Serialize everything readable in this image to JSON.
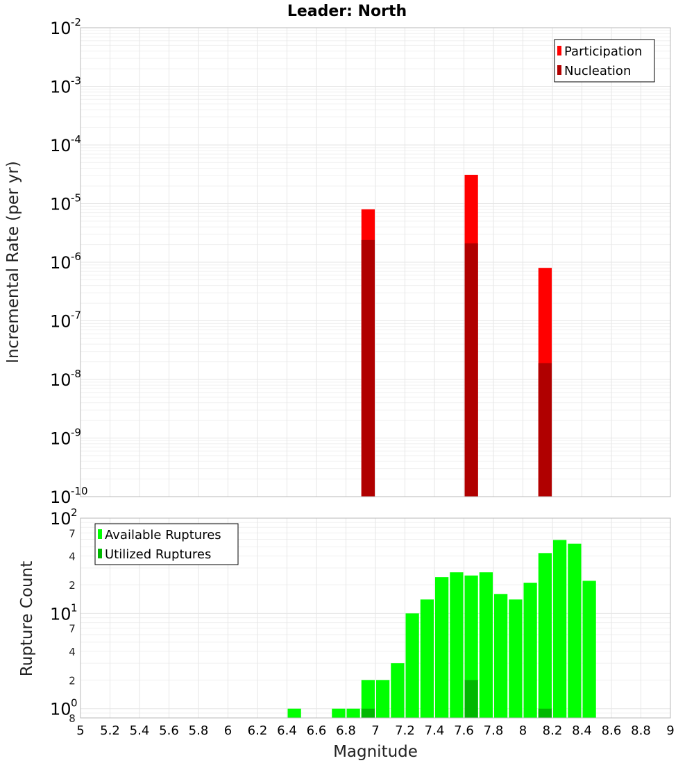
{
  "title": "Leader: North",
  "colors": {
    "participation": "#ff0000",
    "nucleation": "#b00000",
    "available": "#00ff00",
    "utilized": "#00b800"
  },
  "chart_data": [
    {
      "type": "bar",
      "name": "incremental-rate",
      "ylabel": "Incremental Rate (per yr)",
      "yscale": "log",
      "ylim": [
        1e-10,
        0.01
      ],
      "xlim": [
        5,
        9
      ],
      "bin_width": 0.1,
      "y_tick_exponents": [
        "-10",
        "-9",
        "-8",
        "-7",
        "-6",
        "-5",
        "-4",
        "-3",
        "-2"
      ],
      "y_tick_base": "10",
      "grid": true,
      "legend_position": "top-right",
      "series": [
        {
          "name": "Participation",
          "x": [
            6.95,
            7.65,
            8.15
          ],
          "values": [
            8e-06,
            3.1e-05,
            8e-07
          ]
        },
        {
          "name": "Nucleation",
          "x": [
            6.95,
            7.65,
            8.15
          ],
          "values": [
            2.4e-06,
            2.1e-06,
            1.9e-08
          ]
        }
      ]
    },
    {
      "type": "bar",
      "name": "rupture-count",
      "xlabel": "Magnitude",
      "ylabel": "Rupture Count",
      "yscale": "log",
      "ylim": [
        0.8,
        100
      ],
      "xlim": [
        5,
        9
      ],
      "bin_width": 0.1,
      "x_tick_labels": [
        "5",
        "5.2",
        "5.4",
        "5.6",
        "5.8",
        "6",
        "6.2",
        "6.4",
        "6.6",
        "6.8",
        "7",
        "7.2",
        "7.4",
        "7.6",
        "7.8",
        "8",
        "8.2",
        "8.4",
        "8.6",
        "8.8",
        "9"
      ],
      "y_major_labels": [
        {
          "base": "10",
          "exp": "0",
          "value": 1
        },
        {
          "base": "10",
          "exp": "1",
          "value": 10
        },
        {
          "base": "10",
          "exp": "2",
          "value": 100
        }
      ],
      "y_minor_labels": [
        {
          "label": "8",
          "value": 0.8
        },
        {
          "label": "2",
          "value": 2
        },
        {
          "label": "4",
          "value": 4
        },
        {
          "label": "7",
          "value": 7
        },
        {
          "label": "2",
          "value": 20
        },
        {
          "label": "4",
          "value": 40
        },
        {
          "label": "7",
          "value": 70
        }
      ],
      "grid": true,
      "legend_position": "top-left",
      "series": [
        {
          "name": "Available Ruptures",
          "x": [
            6.45,
            6.75,
            6.85,
            6.95,
            7.05,
            7.15,
            7.25,
            7.35,
            7.45,
            7.55,
            7.65,
            7.75,
            7.85,
            7.95,
            8.05,
            8.15,
            8.25,
            8.35,
            8.45
          ],
          "values": [
            1,
            1,
            1,
            2,
            2,
            3,
            10,
            14,
            24,
            27,
            25,
            27,
            16,
            14,
            21,
            43,
            59,
            54,
            22
          ]
        },
        {
          "name": "Utilized Ruptures",
          "x": [
            6.95,
            7.65,
            8.15
          ],
          "values": [
            1,
            2,
            1
          ]
        }
      ]
    }
  ]
}
